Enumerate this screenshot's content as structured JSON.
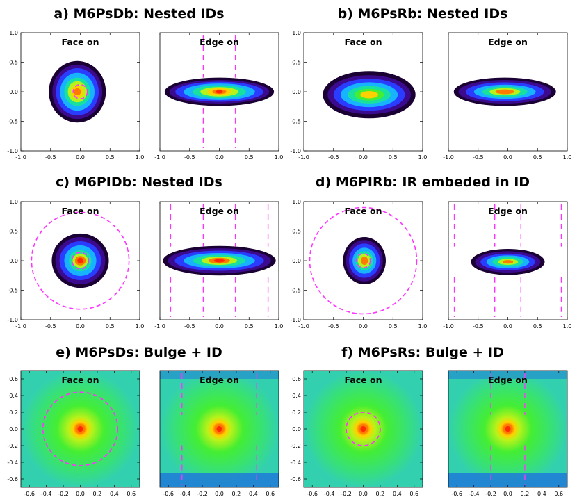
{
  "chart_data": [
    {
      "type": "heatmap",
      "title": "a) M6PsDb: Nested IDs",
      "panels": [
        {
          "label": "Face on",
          "xlim": [
            -1.0,
            1.0
          ],
          "ylim": [
            -1.0,
            1.0
          ],
          "xticks": [
            "-1.0",
            "-0.5",
            "0.0",
            "0.5",
            "1.0"
          ],
          "yticks": [
            "-1.0",
            "-0.5",
            "0.0",
            "0.5",
            "1.0"
          ],
          "circles": [
            0.12
          ],
          "vlines": []
        },
        {
          "label": "Edge on",
          "xlim": [
            -1.0,
            1.0
          ],
          "ylim": [
            -1.0,
            1.0
          ],
          "xticks": [
            "-1.0",
            "-0.5",
            "0.0",
            "0.5",
            "1.0"
          ],
          "yticks": [],
          "circles": [],
          "vlines": [
            -0.27,
            0.27
          ]
        }
      ]
    },
    {
      "type": "heatmap",
      "title": "b) M6PsRb: Nested IDs",
      "panels": [
        {
          "label": "Face on",
          "xlim": [
            -1.0,
            1.0
          ],
          "ylim": [
            -1.0,
            1.0
          ],
          "xticks": [
            "-1.0",
            "-0.5",
            "0.0",
            "0.5",
            "1.0"
          ],
          "yticks": [
            "-1.0",
            "-0.5",
            "0.0",
            "0.5",
            "1.0"
          ],
          "circles": [],
          "vlines": []
        },
        {
          "label": "Edge on",
          "xlim": [
            -1.0,
            1.0
          ],
          "ylim": [
            -1.0,
            1.0
          ],
          "xticks": [
            "-1.0",
            "-0.5",
            "0.0",
            "0.5",
            "1.0"
          ],
          "yticks": [],
          "circles": [],
          "vlines": []
        }
      ]
    },
    {
      "type": "heatmap",
      "title": "c) M6PIDb: Nested IDs",
      "panels": [
        {
          "label": "Face on",
          "xlim": [
            -1.0,
            1.0
          ],
          "ylim": [
            -1.0,
            1.0
          ],
          "xticks": [
            "-1.0",
            "-0.5",
            "0.0",
            "0.5",
            "1.0"
          ],
          "yticks": [
            "-1.0",
            "-0.5",
            "0.0",
            "0.5",
            "1.0"
          ],
          "circles": [
            0.14,
            0.82
          ],
          "vlines": []
        },
        {
          "label": "Edge on",
          "xlim": [
            -1.0,
            1.0
          ],
          "ylim": [
            -1.0,
            1.0
          ],
          "xticks": [
            "-1.0",
            "-0.5",
            "0.0",
            "0.5",
            "1.0"
          ],
          "yticks": [],
          "circles": [],
          "vlines": [
            -0.82,
            -0.27,
            0.27,
            0.82
          ]
        }
      ]
    },
    {
      "type": "heatmap",
      "title": "d) M6PIRb: IR embeded in ID",
      "panels": [
        {
          "label": "Face on",
          "xlim": [
            -1.0,
            1.0
          ],
          "ylim": [
            -1.0,
            1.0
          ],
          "xticks": [
            "-1.0",
            "-0.5",
            "0.0",
            "0.5",
            "1.0"
          ],
          "yticks": [
            "-1.0",
            "-0.5",
            "0.0",
            "0.5",
            "1.0"
          ],
          "circles": [
            0.12,
            0.9
          ],
          "vlines": []
        },
        {
          "label": "Edge on",
          "xlim": [
            -1.0,
            1.0
          ],
          "ylim": [
            -1.0,
            1.0
          ],
          "xticks": [
            "-1.0",
            "-0.5",
            "0.0",
            "0.5",
            "1.0"
          ],
          "yticks": [],
          "circles": [],
          "vlines": [
            -0.9,
            -0.22,
            0.22,
            0.9
          ]
        }
      ]
    },
    {
      "type": "heatmap",
      "title": "e) M6PsDs: Bulge + ID",
      "panels": [
        {
          "label": "Face on",
          "xlim": [
            -0.7,
            0.7
          ],
          "ylim": [
            -0.7,
            0.7
          ],
          "xticks": [
            "-0.6",
            "-0.4",
            "-0.2",
            "0.0",
            "0.2",
            "0.4",
            "0.6"
          ],
          "yticks": [
            "-0.6",
            "-0.4",
            "-0.2",
            "0.0",
            "0.2",
            "0.4",
            "0.6"
          ],
          "circles": [
            0.44
          ],
          "vlines": []
        },
        {
          "label": "Edge on",
          "xlim": [
            -0.7,
            0.7
          ],
          "ylim": [
            -0.7,
            0.7
          ],
          "xticks": [
            "-0.6",
            "-0.4",
            "-0.2",
            "0.0",
            "0.2",
            "0.4",
            "0.6"
          ],
          "yticks": [],
          "circles": [],
          "vlines": [
            -0.44,
            0.44
          ]
        }
      ]
    },
    {
      "type": "heatmap",
      "title": "f) M6PsRs: Bulge + ID",
      "panels": [
        {
          "label": "Face on",
          "xlim": [
            -0.7,
            0.7
          ],
          "ylim": [
            -0.7,
            0.7
          ],
          "xticks": [
            "-0.6",
            "-0.4",
            "-0.2",
            "0.0",
            "0.2",
            "0.4",
            "0.6"
          ],
          "yticks": [
            "-0.6",
            "-0.4",
            "-0.2",
            "0.0",
            "0.2",
            "0.4",
            "0.6"
          ],
          "circles": [
            0.2
          ],
          "vlines": []
        },
        {
          "label": "Edge on",
          "xlim": [
            -0.7,
            0.7
          ],
          "ylim": [
            -0.7,
            0.7
          ],
          "xticks": [
            "-0.6",
            "-0.4",
            "-0.2",
            "0.0",
            "0.2",
            "0.4",
            "0.6"
          ],
          "yticks": [],
          "circles": [],
          "vlines": [
            -0.2,
            0.2
          ]
        }
      ]
    }
  ],
  "colors": {
    "guide_line": "#ff33ff",
    "colormap": [
      "#1a0033",
      "#3b0a8f",
      "#2a3cff",
      "#17b3ff",
      "#18e0a0",
      "#44ee33",
      "#b8f21a",
      "#ffd000",
      "#ff7a00",
      "#ff2a00"
    ]
  }
}
